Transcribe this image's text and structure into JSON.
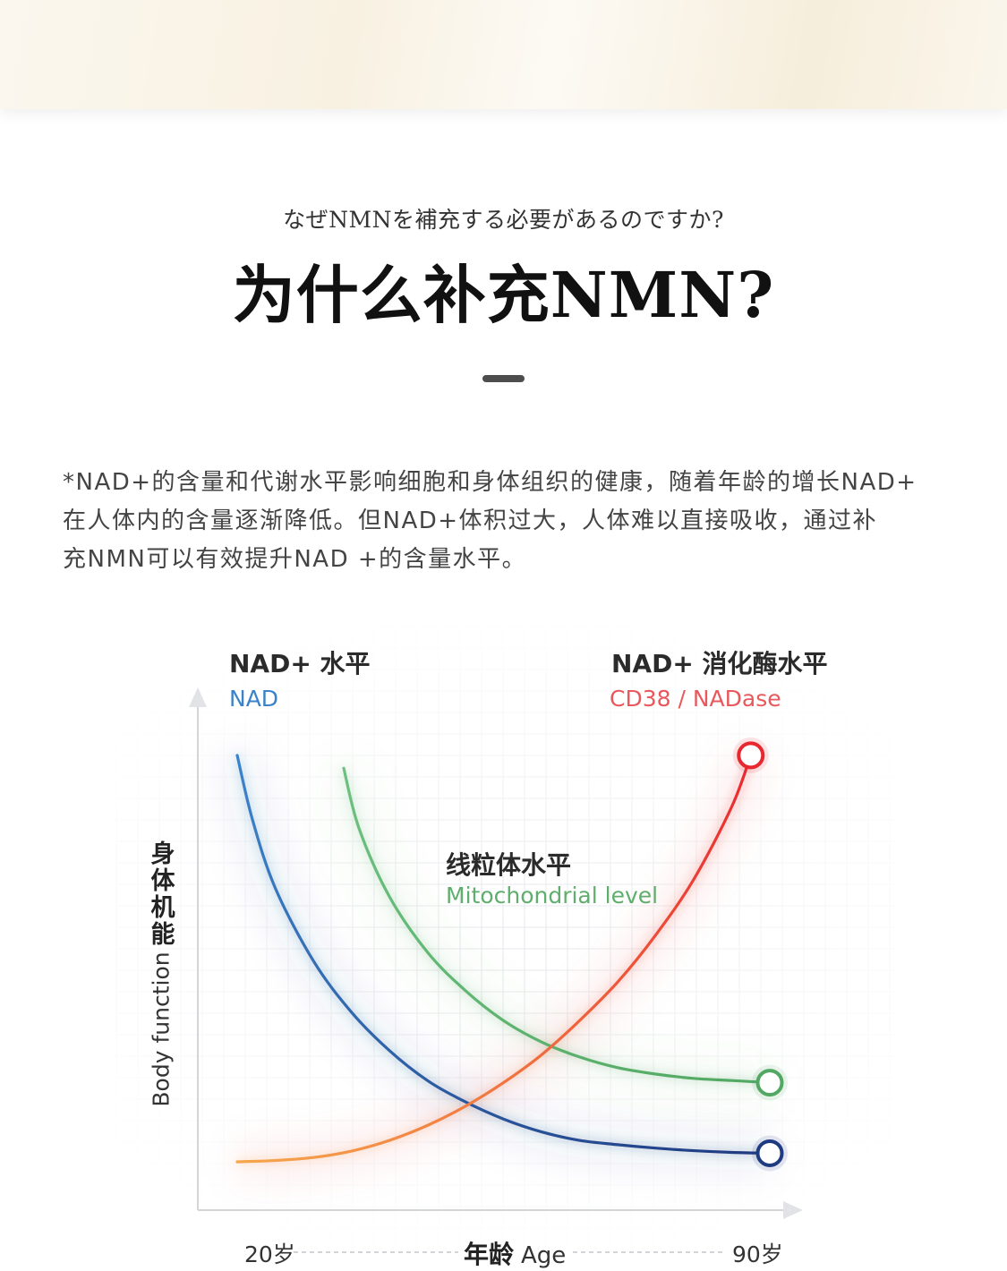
{
  "header": {
    "subtitle_jp": "なぜNMNを補充する必要があるのですか?",
    "title": "为什么补充NMN?"
  },
  "description": {
    "lines": [
      "*NAD+的含量和代谢水平影响细胞和身体组织的健康，随着年龄的增长NAD+",
      "在人体内的含量逐渐降低。但NAD+体积过大，人体难以直接吸收，通过补",
      "充NMN可以有效提升NAD +的含量水平。"
    ]
  },
  "chart_data": {
    "type": "line",
    "y_label_cn": "身体机能",
    "y_label_en": "Body function",
    "x_label_cn": "年龄",
    "x_label_en": "Age",
    "x_ticks": [
      "20岁",
      "90岁"
    ],
    "xlim": [
      20,
      90
    ],
    "ylim": [
      0,
      100
    ],
    "grid": true,
    "series": [
      {
        "name": "NAD",
        "name_cn": "NAD+ 水平",
        "trend": "decreasing",
        "color": "#3b83c9",
        "color_end": "#1e3a80",
        "x": [
          20,
          22,
          25,
          30,
          35,
          40,
          45,
          50,
          55,
          60,
          65,
          70,
          75,
          80,
          85,
          90
        ],
        "y": [
          95,
          80,
          64,
          47,
          35,
          26,
          19,
          14,
          10,
          7,
          5,
          4,
          3.2,
          2.6,
          2.2,
          2
        ]
      },
      {
        "name": "Mitochondrial level",
        "name_cn": "线粒体水平",
        "trend": "decreasing",
        "color": "#6cc080",
        "color_end": "#52a862",
        "x": [
          34,
          36,
          40,
          45,
          50,
          55,
          60,
          65,
          70,
          75,
          80,
          85,
          90
        ],
        "y": [
          92,
          78,
          62,
          49,
          40,
          33,
          28,
          24.5,
          22,
          20.5,
          19.5,
          19,
          18.5
        ]
      },
      {
        "name": "CD38 / NADase",
        "name_cn": "NAD+ 消化酶水平",
        "trend": "increasing",
        "color": "#e8282f",
        "color_start": "#f6a64b",
        "x": [
          20,
          25,
          30,
          35,
          40,
          45,
          50,
          55,
          60,
          65,
          70,
          75,
          80,
          85,
          87.5
        ],
        "y": [
          0,
          0.3,
          1,
          2.5,
          5,
          8.5,
          13,
          18.5,
          25,
          33,
          42,
          53,
          66,
          83,
          95
        ]
      }
    ]
  }
}
